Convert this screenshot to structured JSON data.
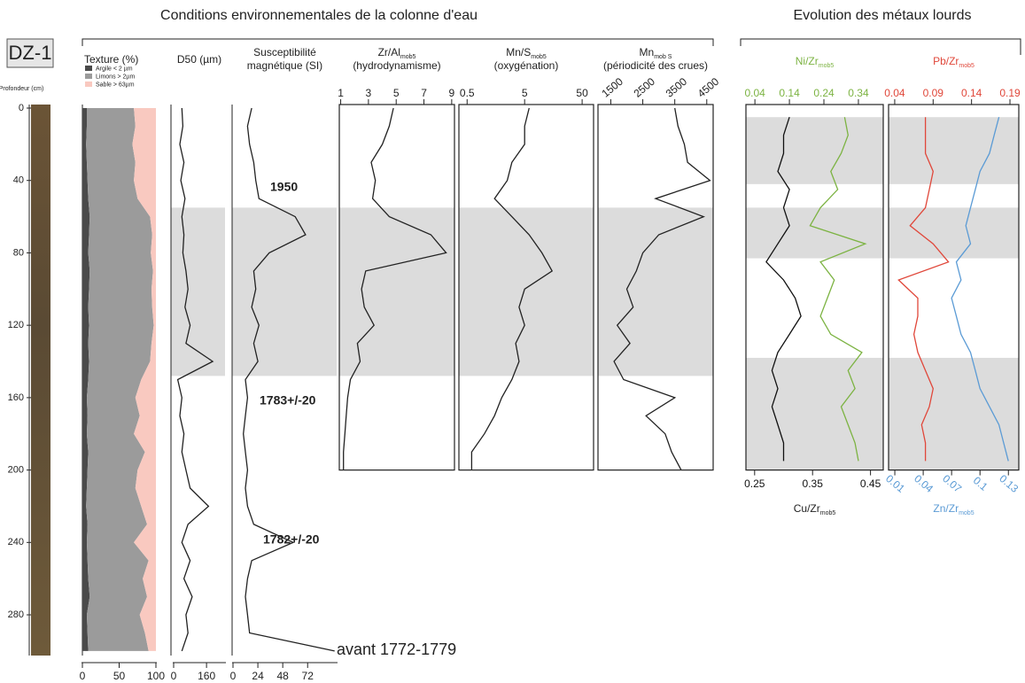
{
  "core_label": "DZ-1",
  "headers": [
    "Conditions environnementales de la colonne d'eau",
    "Evolution des métaux lourds"
  ],
  "annotations": [
    "1950",
    "1783+/-20",
    "1782+/-20",
    "avant 1772-1779"
  ],
  "chart_data": [
    {
      "type": "stacked-area",
      "title": "Texture (%)",
      "ylabel": "Profondeur (cm)",
      "depth": [
        0,
        10,
        20,
        30,
        40,
        50,
        60,
        70,
        80,
        90,
        100,
        110,
        120,
        130,
        140,
        150,
        160,
        170,
        180,
        190,
        200,
        210,
        220,
        230,
        240,
        250,
        260,
        270,
        280,
        290,
        300
      ],
      "ylim": [
        0,
        300
      ],
      "yticks": [
        0,
        40,
        80,
        120,
        160,
        200,
        240,
        280
      ],
      "xlim": [
        0,
        100
      ],
      "xticks": [
        0,
        50,
        100
      ],
      "series": [
        {
          "name": "Argile < 2 µm",
          "color": "#4a4a4a",
          "values": [
            6,
            6,
            5,
            6,
            7,
            8,
            10,
            9,
            8,
            10,
            9,
            8,
            9,
            8,
            9,
            8,
            6,
            7,
            6,
            8,
            7,
            6,
            5,
            7,
            6,
            7,
            8,
            10,
            6,
            7,
            8
          ]
        },
        {
          "name": "Limons > 2µm",
          "color": "#9b9b9b",
          "values": [
            64,
            66,
            63,
            66,
            63,
            67,
            82,
            86,
            85,
            86,
            85,
            87,
            88,
            86,
            83,
            72,
            66,
            71,
            64,
            77,
            68,
            66,
            75,
            81,
            64,
            83,
            74,
            78,
            72,
            78,
            82
          ]
        },
        {
          "name": "Sable > 63µm",
          "color": "#f9c9c0",
          "values": [
            30,
            28,
            32,
            28,
            30,
            25,
            8,
            5,
            7,
            4,
            6,
            5,
            3,
            6,
            8,
            20,
            28,
            22,
            30,
            15,
            25,
            28,
            20,
            12,
            30,
            10,
            18,
            12,
            22,
            15,
            10
          ]
        }
      ]
    },
    {
      "type": "profile",
      "title": "D50 (µm)",
      "depth": [
        0,
        10,
        20,
        30,
        40,
        50,
        60,
        70,
        80,
        90,
        100,
        110,
        120,
        130,
        140,
        150,
        160,
        170,
        180,
        190,
        200,
        210,
        220,
        230,
        240,
        250,
        260,
        270,
        280,
        290,
        300
      ],
      "ylim": [
        0,
        300
      ],
      "xlim": [
        0,
        250
      ],
      "xticks": [
        0,
        160
      ],
      "bands": [
        [
          55,
          148
        ]
      ],
      "series": [
        {
          "color": "#222222",
          "values": [
            40,
            45,
            30,
            50,
            35,
            55,
            40,
            50,
            45,
            60,
            70,
            55,
            80,
            60,
            190,
            20,
            40,
            30,
            50,
            40,
            60,
            80,
            170,
            70,
            40,
            80,
            50,
            90,
            60,
            70,
            40
          ]
        }
      ]
    },
    {
      "type": "profile",
      "title": "Susceptibilité",
      "title_note": "magnétique (SI)",
      "depth": [
        0,
        10,
        20,
        30,
        40,
        50,
        60,
        70,
        80,
        90,
        100,
        110,
        120,
        130,
        140,
        150,
        160,
        170,
        180,
        190,
        200,
        210,
        220,
        230,
        240,
        250,
        260,
        270,
        280,
        290,
        300
      ],
      "ylim": [
        0,
        300
      ],
      "xlim": [
        0,
        100
      ],
      "xticks": [
        0,
        24,
        48,
        72
      ],
      "bands": [
        [
          55,
          148
        ]
      ],
      "series": [
        {
          "color": "#222222",
          "values": [
            18,
            14,
            16,
            20,
            22,
            25,
            60,
            70,
            35,
            20,
            22,
            18,
            25,
            20,
            24,
            12,
            14,
            12,
            10,
            12,
            14,
            12,
            14,
            20,
            58,
            18,
            14,
            12,
            14,
            16,
            98
          ]
        }
      ]
    },
    {
      "type": "profile",
      "title": "Zr/Al",
      "title_sub": "mob5",
      "title_note": "(hydrodynamisme)",
      "depth": [
        0,
        10,
        20,
        30,
        40,
        50,
        60,
        70,
        80,
        90,
        100,
        110,
        120,
        130,
        140,
        150,
        160,
        170,
        180,
        190,
        200
      ],
      "ylim": [
        0,
        200
      ],
      "xlim": [
        0.9,
        9.2
      ],
      "xticks": [
        1,
        3,
        5,
        7,
        9
      ],
      "bands": [
        [
          55,
          148
        ]
      ],
      "series": [
        {
          "color": "#222222",
          "values": [
            4.8,
            4.5,
            4.0,
            3.2,
            3.5,
            3.3,
            4.5,
            7.5,
            8.6,
            2.8,
            2.5,
            2.7,
            3.4,
            2.2,
            2.4,
            1.7,
            1.5,
            1.4,
            1.3,
            1.2,
            1.2
          ]
        }
      ]
    },
    {
      "type": "profile",
      "title": "Mn/S",
      "title_sub": "mob5",
      "title_note": "(oxygénation)",
      "log_x": true,
      "depth": [
        0,
        10,
        20,
        30,
        40,
        50,
        60,
        70,
        80,
        90,
        100,
        110,
        120,
        130,
        140,
        150,
        160,
        170,
        180,
        190,
        200
      ],
      "ylim": [
        0,
        200
      ],
      "xlim": [
        0.36,
        79
      ],
      "xticks": [
        0.5,
        5,
        50
      ],
      "bands": [
        [
          55,
          148
        ]
      ],
      "series": [
        {
          "color": "#222222",
          "values": [
            6,
            5,
            5,
            3,
            2.5,
            1.5,
            3,
            6,
            10,
            15,
            5,
            4,
            5,
            3.5,
            4,
            3,
            2,
            1.5,
            1,
            0.6,
            0.6
          ]
        }
      ]
    },
    {
      "type": "profile",
      "title": "Mn",
      "title_sub": "mob S",
      "title_note": "(périodicité des crues)",
      "rotate_ticks": true,
      "depth": [
        0,
        10,
        20,
        30,
        40,
        50,
        60,
        70,
        80,
        90,
        100,
        110,
        120,
        130,
        140,
        150,
        160,
        170,
        180,
        190,
        200
      ],
      "ylim": [
        0,
        200
      ],
      "xlim": [
        1100,
        4700
      ],
      "xticks": [
        1500,
        2500,
        3500,
        4500
      ],
      "bands": [
        [
          55,
          148
        ]
      ],
      "series": [
        {
          "color": "#222222",
          "values": [
            3500,
            3600,
            3800,
            3900,
            4600,
            2900,
            4400,
            3000,
            2500,
            2300,
            2000,
            2200,
            1700,
            2100,
            1600,
            1900,
            3500,
            2600,
            3200,
            3400,
            3700
          ]
        }
      ]
    },
    {
      "type": "profile",
      "depth": [
        5,
        15,
        25,
        35,
        45,
        55,
        65,
        75,
        85,
        95,
        105,
        115,
        125,
        135,
        145,
        155,
        165,
        175,
        185,
        195
      ],
      "ylim": [
        0,
        200
      ],
      "xlim": [
        0.235,
        0.472
      ],
      "xticks": [
        0.25,
        0.35,
        0.45
      ],
      "x2lim": [
        0.014,
        0.412
      ],
      "x2ticks": [
        0.04,
        0.14,
        0.24,
        0.34
      ],
      "bands": [
        [
          5,
          42
        ],
        [
          55,
          83
        ],
        [
          138,
          200
        ]
      ],
      "series": [
        {
          "name": "Cu/Zr",
          "name_sub": "mob5",
          "color": "#111111",
          "values": [
            0.31,
            0.3,
            0.3,
            0.29,
            0.31,
            0.3,
            0.31,
            0.29,
            0.27,
            0.3,
            0.32,
            0.33,
            0.31,
            0.29,
            0.28,
            0.29,
            0.28,
            0.29,
            0.3,
            0.3
          ]
        },
        {
          "name": "Ni/Zr",
          "name_sub": "mob5",
          "color": "#7cb342",
          "axis": "x2",
          "values": [
            0.3,
            0.31,
            0.29,
            0.26,
            0.28,
            0.23,
            0.2,
            0.36,
            0.23,
            0.27,
            0.25,
            0.23,
            0.26,
            0.35,
            0.31,
            0.33,
            0.29,
            0.31,
            0.33,
            0.34
          ]
        }
      ]
    },
    {
      "type": "profile",
      "depth": [
        5,
        15,
        25,
        35,
        45,
        55,
        65,
        75,
        85,
        95,
        105,
        115,
        125,
        135,
        145,
        155,
        165,
        175,
        185,
        195
      ],
      "ylim": [
        0,
        200
      ],
      "xlim": [
        0.0034,
        0.141
      ],
      "xticks": [
        0.01,
        0.04,
        0.07,
        0.1,
        0.13
      ],
      "x2lim": [
        0.032,
        0.2015
      ],
      "x2ticks": [
        0.04,
        0.09,
        0.14,
        0.19
      ],
      "bands": [
        [
          5,
          42
        ],
        [
          55,
          83
        ],
        [
          138,
          200
        ]
      ],
      "series": [
        {
          "name": "Pb/Zr",
          "name_sub": "mob5",
          "color": "#e0473a",
          "axis": "x2",
          "values": [
            0.08,
            0.08,
            0.08,
            0.09,
            0.085,
            0.08,
            0.06,
            0.09,
            0.11,
            0.045,
            0.07,
            0.07,
            0.065,
            0.07,
            0.08,
            0.09,
            0.085,
            0.075,
            0.08,
            0.08
          ]
        },
        {
          "name": "Zn/Zr",
          "name_sub": "mob5",
          "color": "#5b9bd5",
          "values": [
            0.12,
            0.115,
            0.11,
            0.1,
            0.095,
            0.09,
            0.085,
            0.09,
            0.075,
            0.08,
            0.07,
            0.075,
            0.08,
            0.09,
            0.095,
            0.1,
            0.11,
            0.12,
            0.125,
            0.13
          ]
        }
      ]
    }
  ]
}
